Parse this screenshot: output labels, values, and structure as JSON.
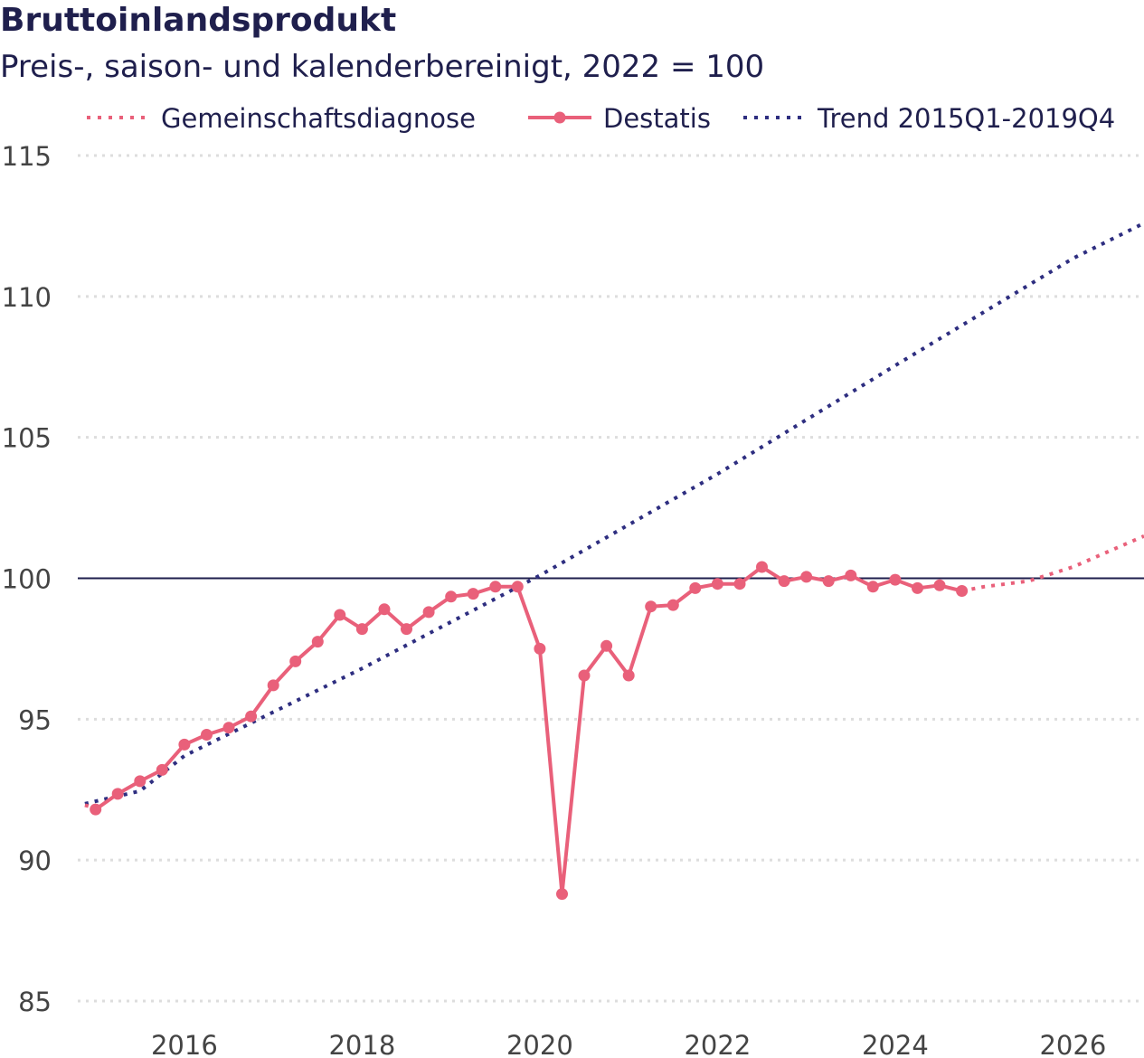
{
  "title": "Bruttoinlandsprodukt",
  "subtitle": "Preis-, saison- und kalenderbereinigt, 2022 = 100",
  "colors": {
    "destatis": "#e9607a",
    "trend": "#2e2e80",
    "reference": "#1f1f4d",
    "grid": "#dddddd"
  },
  "legend": {
    "position": "top",
    "items": [
      "Gemeinschaftsdiagnose",
      "Destatis",
      "Trend 2015Q1-2019Q4"
    ]
  },
  "chart_data": {
    "type": "line",
    "title": "Bruttoinlandsprodukt",
    "subtitle": "Preis-, saison- und kalenderbereinigt, 2022 = 100",
    "xlabel": "",
    "ylabel": "",
    "xlim": [
      2014.8,
      2026.8
    ],
    "ylim": [
      85,
      115
    ],
    "yticks": [
      85,
      90,
      95,
      100,
      105,
      110,
      115
    ],
    "xticks": [
      2016,
      2018,
      2020,
      2022,
      2024,
      2026
    ],
    "grid": true,
    "reference_line": 100,
    "series": [
      {
        "name": "Gemeinschaftsdiagnose",
        "style": "dotted",
        "points": [
          [
            2014.88,
            91.95
          ],
          [
            2015.05,
            91.8
          ]
        ]
      },
      {
        "name": "Gemeinschaftsdiagnose",
        "style": "dotted",
        "points": [
          [
            2024.75,
            99.55
          ],
          [
            2025.0,
            99.7
          ],
          [
            2025.5,
            99.9
          ],
          [
            2026.0,
            100.4
          ],
          [
            2026.8,
            101.5
          ]
        ]
      },
      {
        "name": "Destatis",
        "style": "solid-markers",
        "points": [
          [
            2015.0,
            91.8
          ],
          [
            2015.25,
            92.35
          ],
          [
            2015.5,
            92.8
          ],
          [
            2015.75,
            93.2
          ],
          [
            2016.0,
            94.1
          ],
          [
            2016.25,
            94.45
          ],
          [
            2016.5,
            94.7
          ],
          [
            2016.75,
            95.1
          ],
          [
            2017.0,
            96.2
          ],
          [
            2017.25,
            97.05
          ],
          [
            2017.5,
            97.75
          ],
          [
            2017.75,
            98.7
          ],
          [
            2018.0,
            98.2
          ],
          [
            2018.25,
            98.9
          ],
          [
            2018.5,
            98.2
          ],
          [
            2018.75,
            98.8
          ],
          [
            2019.0,
            99.35
          ],
          [
            2019.25,
            99.45
          ],
          [
            2019.5,
            99.7
          ],
          [
            2019.75,
            99.7
          ],
          [
            2020.0,
            97.5
          ],
          [
            2020.25,
            88.8
          ],
          [
            2020.5,
            96.55
          ],
          [
            2020.75,
            97.6
          ],
          [
            2021.0,
            96.55
          ],
          [
            2021.25,
            99.0
          ],
          [
            2021.5,
            99.05
          ],
          [
            2021.75,
            99.65
          ],
          [
            2022.0,
            99.8
          ],
          [
            2022.25,
            99.8
          ],
          [
            2022.5,
            100.4
          ],
          [
            2022.75,
            99.9
          ],
          [
            2023.0,
            100.05
          ],
          [
            2023.25,
            99.9
          ],
          [
            2023.5,
            100.1
          ],
          [
            2023.75,
            99.7
          ],
          [
            2024.0,
            99.95
          ],
          [
            2024.25,
            99.65
          ],
          [
            2024.5,
            99.75
          ],
          [
            2024.75,
            99.55
          ]
        ]
      },
      {
        "name": "Trend 2015Q1-2019Q4",
        "style": "dotted",
        "points": [
          [
            2014.88,
            92.0
          ],
          [
            2015.5,
            92.45
          ],
          [
            2016.0,
            93.7
          ],
          [
            2018.0,
            96.8
          ],
          [
            2020.0,
            100.1
          ],
          [
            2022.0,
            103.7
          ],
          [
            2024.0,
            107.55
          ],
          [
            2026.0,
            111.35
          ],
          [
            2026.8,
            112.6
          ]
        ]
      }
    ]
  }
}
